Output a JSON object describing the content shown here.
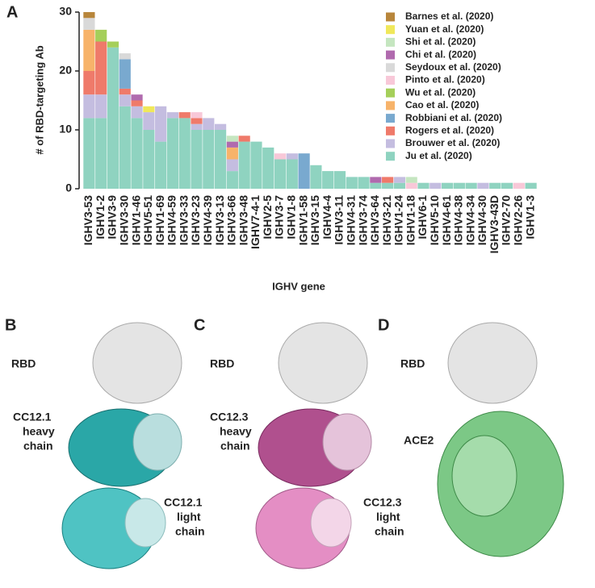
{
  "chart_data": {
    "type": "stacked_bar",
    "ylabel": "# of RBD-targeting Ab",
    "xlabel": "IGHV gene",
    "categories": [
      "IGHV3-53",
      "IGHV1-2",
      "IGHV3-9",
      "IGHV3-30",
      "IGHV1-46",
      "IGHV5-51",
      "IGHV1-69",
      "IGHV4-59",
      "IGHV3-33",
      "IGHV3-23",
      "IGHV4-39",
      "IGHV3-13",
      "IGHV3-66",
      "IGHV3-48",
      "IGHV7-4-1",
      "IGHV2-5",
      "IGHV3-7",
      "IGHV1-8",
      "IGHV1-58",
      "IGHV3-15",
      "IGHV4-4",
      "IGHV3-11",
      "IGHV4-31",
      "IGHV3-74",
      "IGHV3-64",
      "IGHV3-21",
      "IGHV1-24",
      "IGHV1-18",
      "IGHV6-1",
      "IGHV5-10",
      "IGHV4-61",
      "IGHV4-38",
      "IGHV4-34",
      "IGHV4-30",
      "IGHV3-43D",
      "IGHV2-70",
      "IGHV2-26",
      "IGHV1-3"
    ],
    "series": [
      {
        "name": "Ju et al. (2020)",
        "color": "#8fd3c0",
        "values": [
          12,
          12,
          24,
          14,
          12,
          10,
          8,
          12,
          12,
          10,
          10,
          10,
          3,
          8,
          8,
          7,
          5,
          5,
          0,
          4,
          3,
          3,
          2,
          2,
          1,
          1,
          1,
          0,
          1,
          0,
          1,
          1,
          1,
          0,
          1,
          1,
          0,
          1
        ]
      },
      {
        "name": "Brouwer et al. (2020)",
        "color": "#c4bde0",
        "values": [
          4,
          4,
          0,
          2,
          2,
          3,
          6,
          1,
          0,
          1,
          2,
          1,
          2,
          0,
          0,
          0,
          0,
          1,
          0,
          0,
          0,
          0,
          0,
          0,
          0,
          0,
          1,
          0,
          0,
          1,
          0,
          0,
          0,
          1,
          0,
          0,
          0,
          0
        ]
      },
      {
        "name": "Rogers et al. (2020)",
        "color": "#ef7a6a",
        "values": [
          4,
          9,
          0,
          1,
          1,
          0,
          0,
          0,
          1,
          1,
          0,
          0,
          0,
          1,
          0,
          0,
          0,
          0,
          0,
          0,
          0,
          0,
          0,
          0,
          0,
          1,
          0,
          0,
          0,
          0,
          0,
          0,
          0,
          0,
          0,
          0,
          0,
          0
        ]
      },
      {
        "name": "Robbiani et al. (2020)",
        "color": "#79a9cf",
        "values": [
          0,
          0,
          0,
          5,
          0,
          0,
          0,
          0,
          0,
          0,
          0,
          0,
          0,
          0,
          0,
          0,
          0,
          0,
          6,
          0,
          0,
          0,
          0,
          0,
          0,
          0,
          0,
          0,
          0,
          0,
          0,
          0,
          0,
          0,
          0,
          0,
          0,
          0
        ]
      },
      {
        "name": "Cao et al. (2020)",
        "color": "#f7b36a",
        "values": [
          7,
          0,
          0,
          0,
          0,
          0,
          0,
          0,
          0,
          0,
          0,
          0,
          2,
          0,
          0,
          0,
          0,
          0,
          0,
          0,
          0,
          0,
          0,
          0,
          0,
          0,
          0,
          0,
          0,
          0,
          0,
          0,
          0,
          0,
          0,
          0,
          0,
          0
        ]
      },
      {
        "name": "Wu et al. (2020)",
        "color": "#a5cf5a",
        "values": [
          0,
          2,
          1,
          0,
          0,
          0,
          0,
          0,
          0,
          0,
          0,
          0,
          0,
          0,
          0,
          0,
          0,
          0,
          0,
          0,
          0,
          0,
          0,
          0,
          0,
          0,
          0,
          0,
          0,
          0,
          0,
          0,
          0,
          0,
          0,
          0,
          0,
          0
        ]
      },
      {
        "name": "Pinto et al. (2020)",
        "color": "#f8c8d8",
        "values": [
          0,
          0,
          0,
          0,
          0,
          0,
          0,
          0,
          0,
          1,
          0,
          0,
          0,
          0,
          0,
          0,
          1,
          0,
          0,
          0,
          0,
          0,
          0,
          0,
          0,
          0,
          0,
          1,
          0,
          0,
          0,
          0,
          0,
          0,
          0,
          0,
          1,
          0
        ]
      },
      {
        "name": "Seydoux et al. (2020)",
        "color": "#d9d9d9",
        "values": [
          2,
          0,
          0,
          1,
          0,
          0,
          0,
          0,
          0,
          0,
          0,
          0,
          0,
          0,
          0,
          0,
          0,
          0,
          0,
          0,
          0,
          0,
          0,
          0,
          0,
          0,
          0,
          0,
          0,
          0,
          0,
          0,
          0,
          0,
          0,
          0,
          0,
          0
        ]
      },
      {
        "name": "Chi et al. (2020)",
        "color": "#b06aae",
        "values": [
          0,
          0,
          0,
          0,
          1,
          0,
          0,
          0,
          0,
          0,
          0,
          0,
          1,
          0,
          0,
          0,
          0,
          0,
          0,
          0,
          0,
          0,
          0,
          0,
          1,
          0,
          0,
          0,
          0,
          0,
          0,
          0,
          0,
          0,
          0,
          0,
          0,
          0
        ]
      },
      {
        "name": "Shi et al. (2020)",
        "color": "#c5e6c0",
        "values": [
          0,
          0,
          0,
          0,
          0,
          0,
          0,
          0,
          0,
          0,
          0,
          0,
          1,
          0,
          0,
          0,
          0,
          0,
          0,
          0,
          0,
          0,
          0,
          0,
          0,
          0,
          0,
          1,
          0,
          0,
          0,
          0,
          0,
          0,
          0,
          0,
          0,
          0
        ]
      },
      {
        "name": "Yuan et al. (2020)",
        "color": "#f0e85a",
        "values": [
          0,
          0,
          0,
          0,
          0,
          1,
          0,
          0,
          0,
          0,
          0,
          0,
          0,
          0,
          0,
          0,
          0,
          0,
          0,
          0,
          0,
          0,
          0,
          0,
          0,
          0,
          0,
          0,
          0,
          0,
          0,
          0,
          0,
          0,
          0,
          0,
          0,
          0
        ]
      },
      {
        "name": "Barnes et al. (2020)",
        "color": "#b8863b",
        "values": [
          1,
          0,
          0,
          0,
          0,
          0,
          0,
          0,
          0,
          0,
          0,
          0,
          0,
          0,
          0,
          0,
          0,
          0,
          0,
          0,
          0,
          0,
          0,
          0,
          0,
          0,
          0,
          0,
          0,
          0,
          0,
          0,
          0,
          0,
          0,
          0,
          0,
          0
        ]
      }
    ],
    "ylim": [
      0,
      30
    ],
    "yticks": [
      0,
      10,
      20,
      30
    ],
    "legend": "upper right"
  },
  "panels": {
    "a": "A",
    "b": "B",
    "c": "C",
    "d": "D"
  },
  "structures": {
    "b": {
      "rbd": "RBD",
      "heavy": [
        "CC12.1",
        "heavy",
        "chain"
      ],
      "light": [
        "CC12.1",
        "light",
        "chain"
      ]
    },
    "c": {
      "rbd": "RBD",
      "heavy": [
        "CC12.3",
        "heavy",
        "chain"
      ],
      "light": [
        "CC12.3",
        "light",
        "chain"
      ]
    },
    "d": {
      "rbd": "RBD",
      "ace2": "ACE2"
    }
  }
}
